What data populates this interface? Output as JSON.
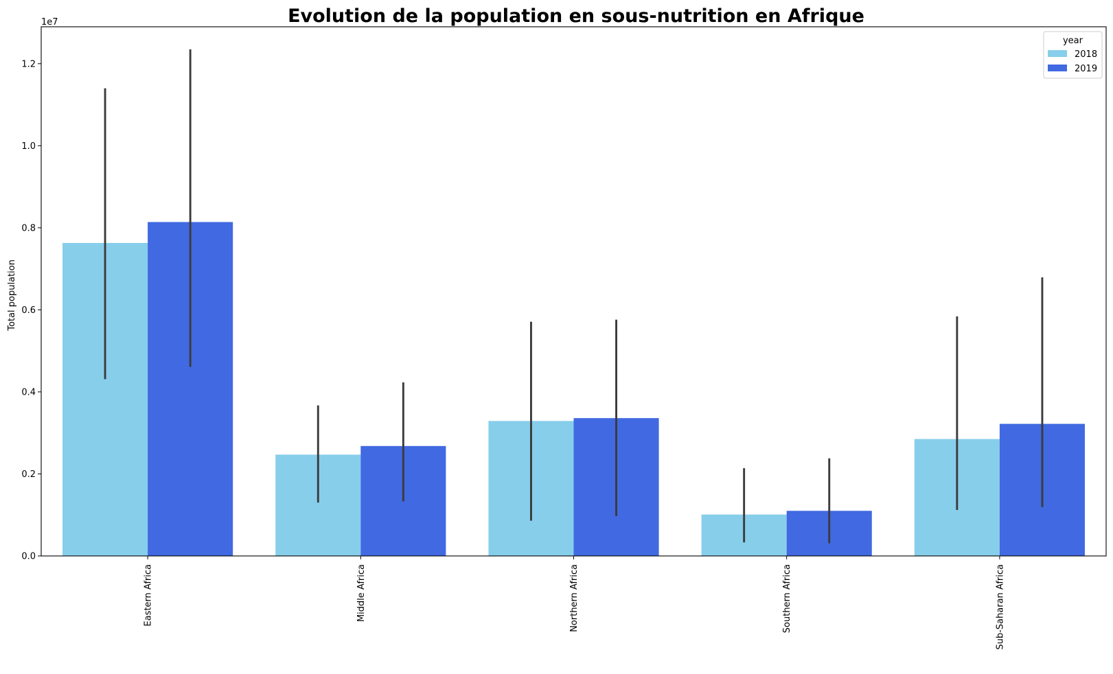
{
  "chart_data": {
    "type": "bar",
    "title": "Evolution de la population en sous-nutrition en Afrique",
    "xlabel": "",
    "ylabel": "Total population",
    "y_offset_label": "1e7",
    "ylim": [
      0,
      12900000
    ],
    "y_ticks": [
      0,
      2000000,
      4000000,
      6000000,
      8000000,
      10000000,
      12000000
    ],
    "y_tick_labels": [
      "0.0",
      "0.2",
      "0.4",
      "0.6",
      "0.8",
      "1.0",
      "1.2"
    ],
    "categories": [
      "Eastern Africa",
      "Middle Africa",
      "Northern Africa",
      "Southern Africa",
      "Sub-Saharan Africa"
    ],
    "grid": false,
    "legend": {
      "title": "year",
      "placement": "top-right"
    },
    "series": [
      {
        "name": "2018",
        "color": "#87ceeb",
        "values": [
          7630000,
          2470000,
          3290000,
          1010000,
          2850000
        ],
        "error_low": [
          4310000,
          1300000,
          860000,
          330000,
          1120000
        ],
        "error_high": [
          11400000,
          3670000,
          5710000,
          2140000,
          5840000
        ]
      },
      {
        "name": "2019",
        "color": "#4169e1",
        "values": [
          8140000,
          2680000,
          3360000,
          1100000,
          3220000
        ],
        "error_low": [
          4610000,
          1330000,
          970000,
          310000,
          1190000
        ],
        "error_high": [
          12350000,
          4230000,
          5760000,
          2380000,
          6790000
        ]
      }
    ]
  }
}
